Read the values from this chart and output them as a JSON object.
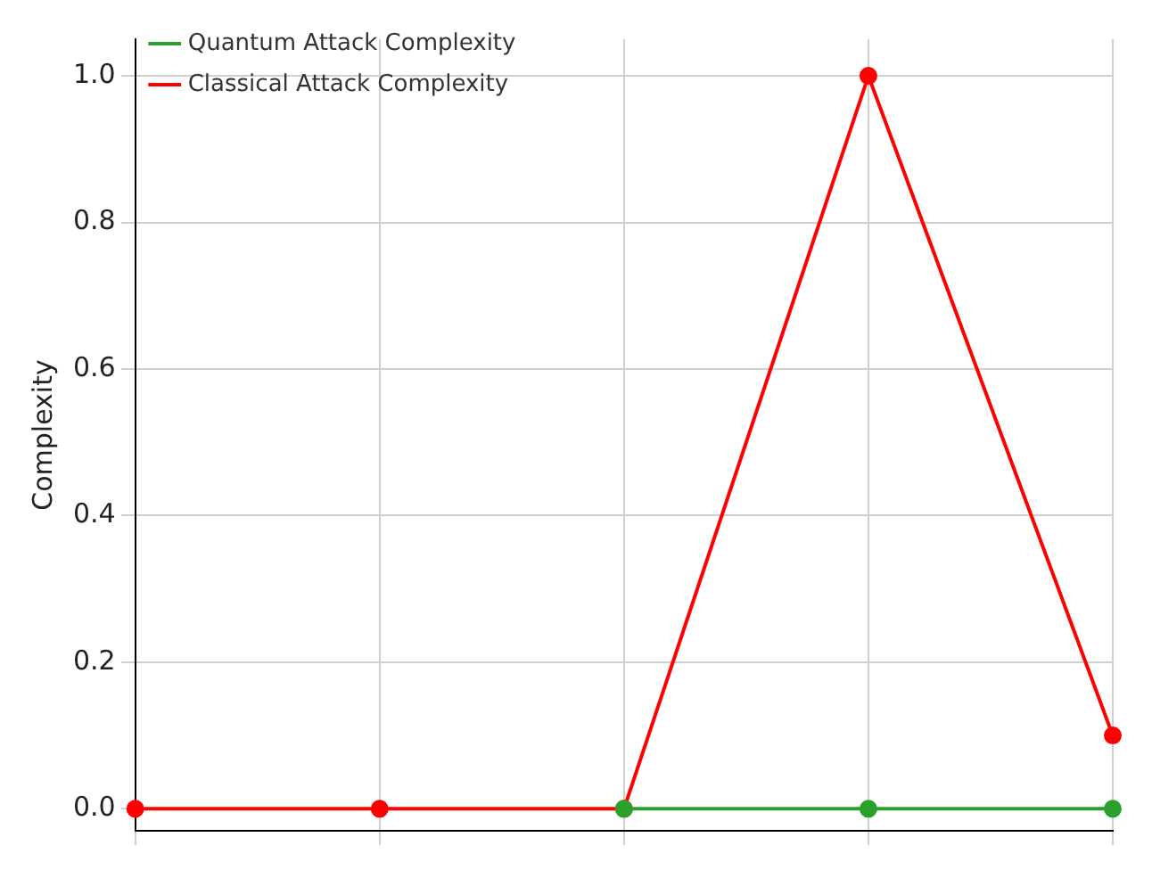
{
  "chart_data": {
    "type": "line",
    "ylabel": "Complexity",
    "categories": [
      null,
      null,
      null,
      null,
      null
    ],
    "series": [
      {
        "name": "Quantum Attack Complexity",
        "color": "#2ca02c",
        "values": [
          null,
          null,
          0,
          0,
          0
        ]
      },
      {
        "name": "Classical Attack Complexity",
        "color": "#ff0000",
        "values": [
          0,
          0,
          0,
          1.0,
          0.1
        ]
      }
    ],
    "ylim": [
      -0.03,
      1.05
    ],
    "yticks": [
      {
        "value": 0,
        "label": "0.0"
      },
      {
        "value": 0.2,
        "label": "0.2"
      },
      {
        "value": 0.4,
        "label": "0.4"
      },
      {
        "value": 0.6,
        "label": "0.6"
      },
      {
        "value": 0.8,
        "label": "0.8"
      },
      {
        "value": 1,
        "label": "1.0"
      }
    ],
    "tick_labels": "y",
    "grid": true,
    "legend": "top left",
    "marker": "circle",
    "line_style": "solid"
  }
}
